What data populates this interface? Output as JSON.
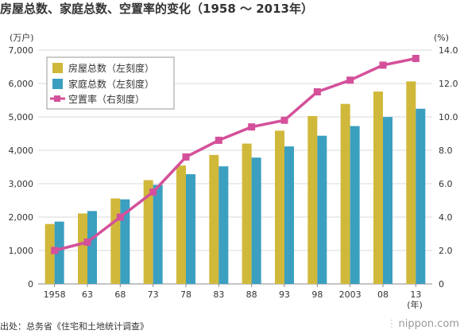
{
  "title": "房屋总数、家庭总数、空置率的变化（1958 ～ 2013年）",
  "source": "出处：总务省《住宅和土地统计调查》",
  "brand": "nippon.com",
  "colors": {
    "houses": "#d0b83a",
    "households": "#3b9fc0",
    "vacancy": "#d4509a",
    "grid": "#d8d8d8",
    "axis": "#888888",
    "text": "#333333"
  },
  "chart_data": {
    "type": "bar",
    "categories": [
      "1958",
      "63",
      "68",
      "73",
      "78",
      "83",
      "88",
      "93",
      "98",
      "2003",
      "08",
      "13"
    ],
    "x_unit": "(年)",
    "left_axis": {
      "unit": "(万户)",
      "ylim": [
        0,
        7000
      ],
      "ticks": [
        "0",
        "1,000",
        "2,000",
        "3,000",
        "4,000",
        "5,000",
        "6,000",
        "7,000"
      ]
    },
    "right_axis": {
      "unit": "(%)",
      "ylim": [
        0,
        14
      ],
      "ticks": [
        "0",
        "2.0",
        "4.0",
        "6.0",
        "8.0",
        "10.0",
        "12.0",
        "14.0"
      ]
    },
    "series": [
      {
        "name": "房屋总数（左刻度）",
        "type": "bar",
        "axis": "left",
        "values": [
          1793,
          2109,
          2559,
          3106,
          3545,
          3861,
          4201,
          4588,
          5025,
          5389,
          5759,
          6063
        ]
      },
      {
        "name": "家庭总数（左刻度）",
        "type": "bar",
        "axis": "left",
        "values": [
          1865,
          2182,
          2532,
          2965,
          3284,
          3520,
          3781,
          4116,
          4436,
          4726,
          4997,
          5245
        ]
      },
      {
        "name": "空置率（右刻度）",
        "type": "line",
        "axis": "right",
        "values": [
          2.0,
          2.5,
          4.0,
          5.5,
          7.6,
          8.6,
          9.4,
          9.8,
          11.5,
          12.2,
          13.1,
          13.5
        ]
      }
    ],
    "legend": "top-left",
    "grid": true
  }
}
